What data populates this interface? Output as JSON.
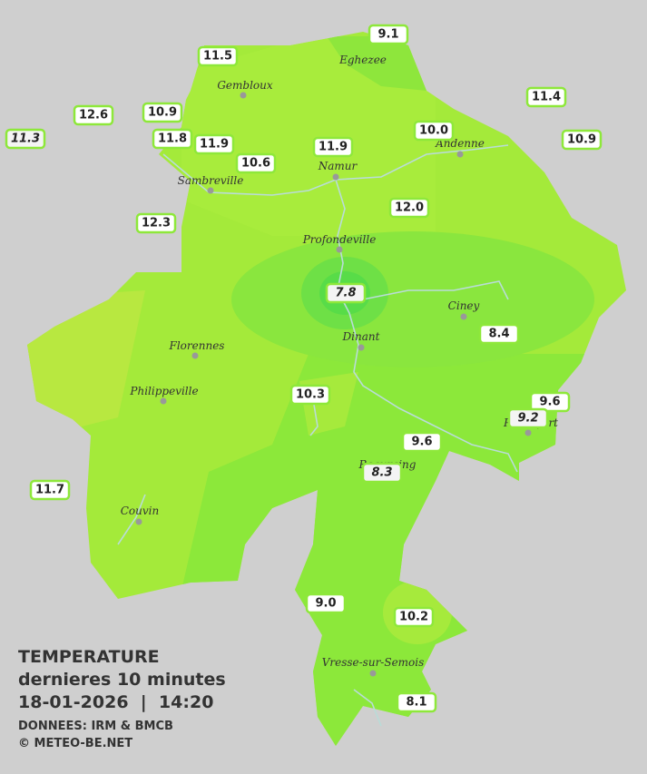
{
  "title": "TEMPERATURE",
  "subtitle": "dernieres 10 minutes",
  "timestamp": "18-01-2026  |  14:20",
  "source": "DONNEES: IRM & BMCB",
  "credit": "© METEO-BE.NET",
  "cities": [
    "Eghezee",
    "Gembloux",
    "Andenne",
    "Namur",
    "Sambreville",
    "Profondeville",
    "Ciney",
    "Dinant",
    "Florennes",
    "Philippeville",
    "Rochefort",
    "Beauraing",
    "Couvin",
    "Vresse-sur-Semois"
  ],
  "stations": [
    "9.1",
    "11.5",
    "11.4",
    "12.6",
    "10.9",
    "11.3",
    "11.8",
    "11.9",
    "10.0",
    "10.9",
    "11.9",
    "10.6",
    "12.0",
    "12.3",
    "7.8",
    "8.4",
    "10.3",
    "9.6",
    "9.2",
    "9.6",
    "8.3",
    "11.7",
    "9.0",
    "10.2",
    "8.1"
  ]
}
